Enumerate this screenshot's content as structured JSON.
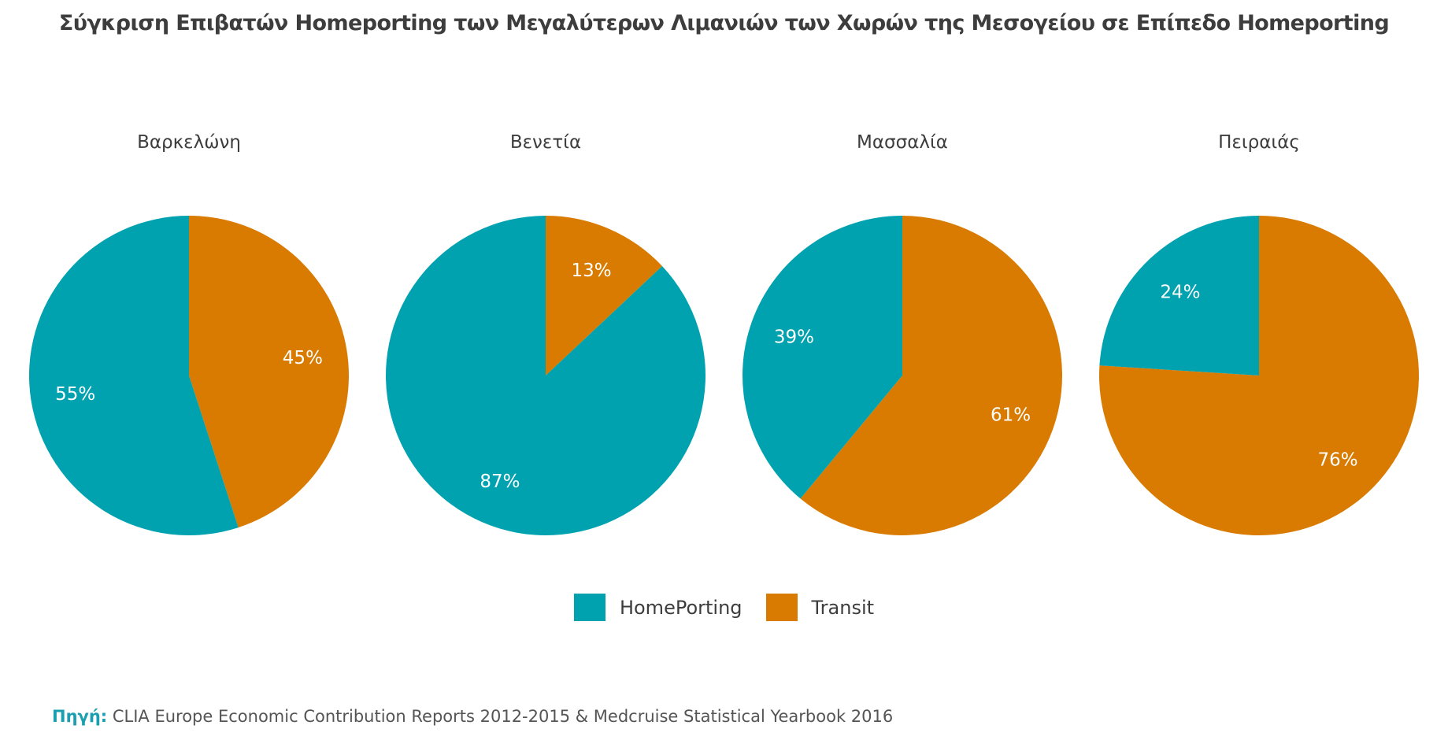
{
  "title": "Σύγκριση Επιβατών Homeporting των Μεγαλύτερων Λιμανιών των Χωρών της Μεσογείου σε Επίπεδο Homeporting",
  "colors": {
    "homeporting": "#00a2b0",
    "transit": "#d97b00"
  },
  "legend": [
    {
      "label": "HomePorting",
      "color": "#00a2b0"
    },
    {
      "label": "Transit",
      "color": "#d97b00"
    }
  ],
  "source": {
    "prefix": "Πηγή:",
    "text": " CLIA Europe Economic Contribution Reports 2012-2015 & Medcruise Statistical Yearbook 2016"
  },
  "chart_data": [
    {
      "type": "pie",
      "title": "Βαρκελώνη",
      "slices": [
        {
          "name": "HomePorting",
          "value": 55,
          "label": "55%"
        },
        {
          "name": "Transit",
          "value": 45,
          "label": "45%"
        }
      ]
    },
    {
      "type": "pie",
      "title": "Βενετία",
      "slices": [
        {
          "name": "HomePorting",
          "value": 87,
          "label": "87%"
        },
        {
          "name": "Transit",
          "value": 13,
          "label": "13%"
        }
      ]
    },
    {
      "type": "pie",
      "title": "Μασσαλία",
      "slices": [
        {
          "name": "HomePorting",
          "value": 39,
          "label": "39%"
        },
        {
          "name": "Transit",
          "value": 61,
          "label": "61%"
        }
      ]
    },
    {
      "type": "pie",
      "title": "Πειραιάς",
      "slices": [
        {
          "name": "HomePorting",
          "value": 24,
          "label": "24%"
        },
        {
          "name": "Transit",
          "value": 76,
          "label": "76%"
        }
      ]
    }
  ]
}
